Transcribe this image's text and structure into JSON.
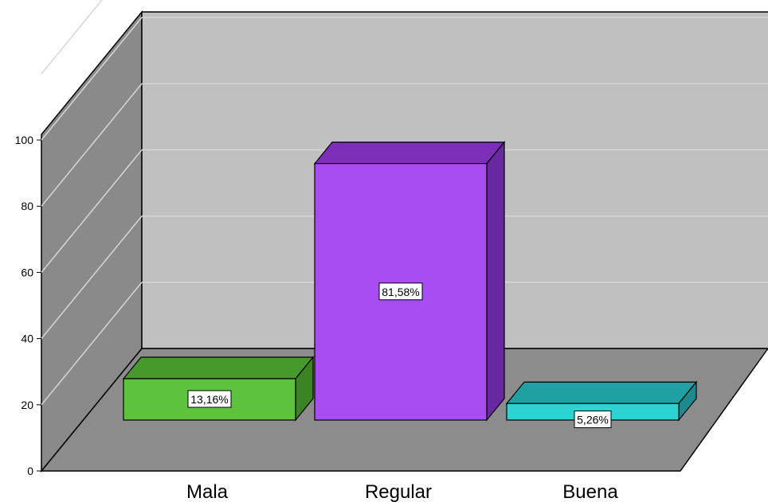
{
  "chart_data": {
    "type": "bar",
    "title": "",
    "xlabel": "",
    "ylabel": "",
    "categories": [
      "Mala",
      "Regular",
      "Buena"
    ],
    "values": [
      13.16,
      81.58,
      5.26
    ],
    "data_labels": [
      "13,16%",
      "81,58%",
      "5,26%"
    ],
    "y_ticks": [
      "0",
      "20",
      "40",
      "60",
      "80",
      "100"
    ],
    "ylim": [
      0,
      100
    ],
    "grid": true,
    "legend": "none",
    "three_d": true,
    "colors": {
      "back_wall": "#c0c0c0",
      "side_wall": "#8a8a8a",
      "floor": "#8c8c8c",
      "gridline": "#d6d6d6",
      "bars": [
        {
          "front": "#5dc23c",
          "top": "#469a2c",
          "side": "#3b8424"
        },
        {
          "front": "#a64ef2",
          "top": "#7b2fb8",
          "side": "#6a28a0"
        },
        {
          "front": "#2dd3d3",
          "top": "#1fa0a3",
          "side": "#1a8a8c"
        }
      ]
    }
  }
}
